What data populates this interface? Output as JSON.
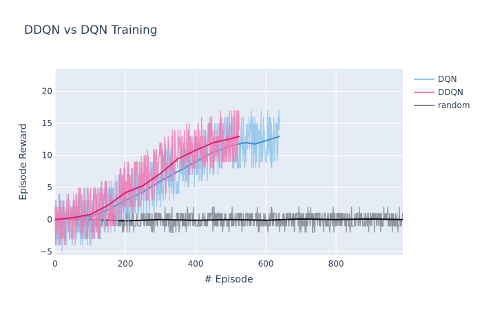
{
  "chart_data": {
    "type": "line",
    "title": "DDQN vs DQN Training",
    "xlabel": "# Episode",
    "ylabel": "Episode Reward",
    "xlim": [
      0,
      990
    ],
    "ylim": [
      -5.5,
      23.5
    ],
    "x_ticks": [
      0,
      200,
      400,
      600,
      800
    ],
    "x_tick_labels": [
      "0",
      "200",
      "400",
      "600",
      "800"
    ],
    "y_ticks": [
      -5,
      0,
      5,
      10,
      15,
      20
    ],
    "y_tick_labels": [
      "−5",
      "0",
      "5",
      "10",
      "15",
      "20"
    ],
    "grid": true,
    "legend_position": "top-right",
    "series": [
      {
        "name": "DQN",
        "color": "#8ec4ea",
        "episodes": 640,
        "raw_trend": [
          [
            0,
            -0.5
          ],
          [
            100,
            0.5
          ],
          [
            150,
            2
          ],
          [
            200,
            3.5
          ],
          [
            250,
            5
          ],
          [
            300,
            6.5
          ],
          [
            350,
            8
          ],
          [
            400,
            9.5
          ],
          [
            450,
            11
          ],
          [
            500,
            12
          ],
          [
            550,
            12.5
          ],
          [
            600,
            12.5
          ],
          [
            640,
            13
          ]
        ],
        "raw_spread": 4.5,
        "avg_color": "#3d8fd6",
        "moving_average": [
          [
            0,
            0
          ],
          [
            60,
            0.2
          ],
          [
            100,
            0.5
          ],
          [
            150,
            1.5
          ],
          [
            200,
            3
          ],
          [
            250,
            4.3
          ],
          [
            300,
            6
          ],
          [
            350,
            7.5
          ],
          [
            400,
            9
          ],
          [
            450,
            10.5
          ],
          [
            500,
            11.5
          ],
          [
            540,
            12
          ],
          [
            570,
            11.8
          ],
          [
            600,
            12.3
          ],
          [
            640,
            13
          ]
        ]
      },
      {
        "name": "DDQN",
        "color": "#f27ab2",
        "episodes": 525,
        "raw_trend": [
          [
            0,
            0
          ],
          [
            100,
            1
          ],
          [
            150,
            2.5
          ],
          [
            200,
            4.5
          ],
          [
            250,
            6
          ],
          [
            300,
            8
          ],
          [
            350,
            10
          ],
          [
            400,
            11.5
          ],
          [
            450,
            12
          ],
          [
            525,
            13
          ]
        ],
        "raw_spread": 4.5,
        "avg_color": "#e6196e",
        "moving_average": [
          [
            0,
            0
          ],
          [
            50,
            0.3
          ],
          [
            100,
            0.8
          ],
          [
            150,
            2.2
          ],
          [
            200,
            4.2
          ],
          [
            250,
            5.3
          ],
          [
            300,
            7.2
          ],
          [
            350,
            9.5
          ],
          [
            400,
            10.8
          ],
          [
            450,
            12
          ],
          [
            500,
            12.6
          ],
          [
            525,
            13
          ]
        ]
      },
      {
        "name": "random",
        "color": "#7f8591",
        "episodes": 990,
        "raw_trend": [
          [
            0,
            0
          ],
          [
            990,
            0
          ]
        ],
        "raw_spread": 1.6,
        "avg_color": "#111111",
        "moving_average": [
          [
            0,
            0.1
          ],
          [
            100,
            0
          ],
          [
            200,
            -0.2
          ],
          [
            300,
            0
          ],
          [
            400,
            -0.1
          ],
          [
            500,
            0
          ],
          [
            600,
            -0.1
          ],
          [
            700,
            0.1
          ],
          [
            800,
            0
          ],
          [
            900,
            0.1
          ],
          [
            990,
            0
          ]
        ]
      }
    ]
  }
}
